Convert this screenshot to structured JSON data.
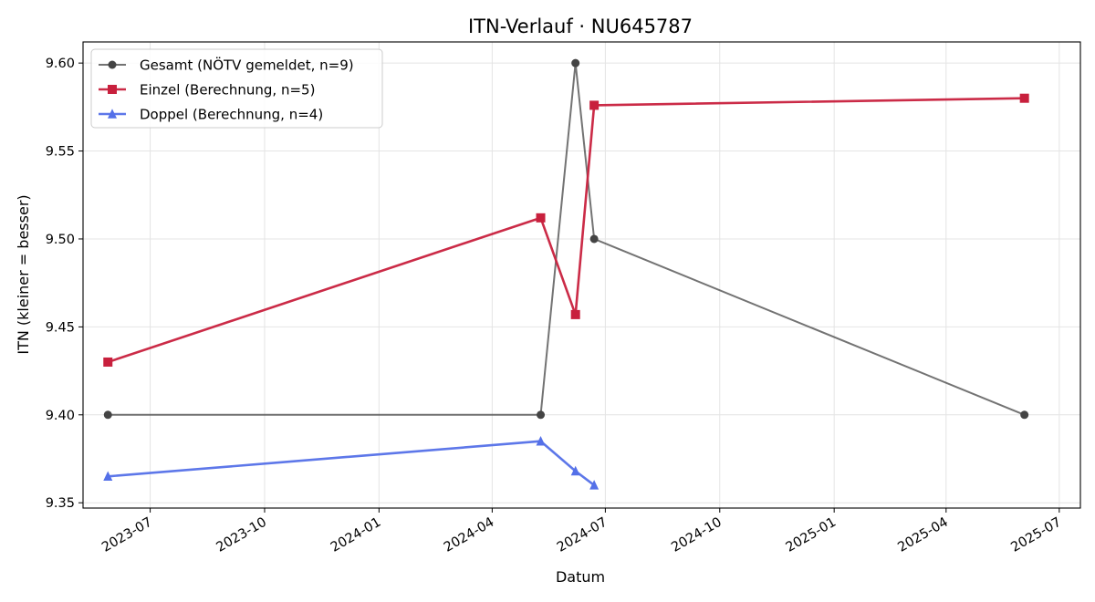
{
  "chart_data": {
    "type": "line",
    "title": "ITN-Verlauf · NU645787",
    "xlabel": "Datum",
    "ylabel": "ITN  (kleiner = besser)",
    "x_axis": "date",
    "xlim": [
      "2023-05-08",
      "2025-07-18"
    ],
    "ylim": [
      9.347,
      9.612
    ],
    "x_ticks": [
      "2023-07-01",
      "2023-10-01",
      "2024-01-01",
      "2024-04-01",
      "2024-07-01",
      "2024-10-01",
      "2025-01-01",
      "2025-04-01",
      "2025-07-01"
    ],
    "x_tick_labels": [
      "2023-07",
      "2023-10",
      "2024-01",
      "2024-04",
      "2024-07",
      "2024-10",
      "2025-01",
      "2025-04",
      "2025-07"
    ],
    "y_ticks": [
      9.35,
      9.4,
      9.45,
      9.5,
      9.55,
      9.6
    ],
    "y_tick_labels": [
      "9.35",
      "9.40",
      "9.45",
      "9.50",
      "9.55",
      "9.60"
    ],
    "grid": true,
    "legend_position": "top-left",
    "series": [
      {
        "name": "Gesamt (NÖTV gemeldet, n=9)",
        "color": "#444444",
        "marker": "circle",
        "x": [
          "2023-05-28",
          "2024-05-10",
          "2024-06-07",
          "2024-06-22",
          "2025-06-03"
        ],
        "y": [
          9.4,
          9.4,
          9.6,
          9.5,
          9.4
        ]
      },
      {
        "name": "Einzel (Berechnung, n=5)",
        "color": "#c8203d",
        "marker": "square",
        "x": [
          "2023-05-28",
          "2024-05-10",
          "2024-06-07",
          "2024-06-22",
          "2025-06-03"
        ],
        "y": [
          9.43,
          9.512,
          9.457,
          9.576,
          9.58
        ]
      },
      {
        "name": "Doppel (Berechnung, n=4)",
        "color": "#5470e8",
        "marker": "triangle",
        "x": [
          "2023-05-28",
          "2024-05-10",
          "2024-06-07",
          "2024-06-22"
        ],
        "y": [
          9.365,
          9.385,
          9.368,
          9.36
        ]
      }
    ]
  }
}
